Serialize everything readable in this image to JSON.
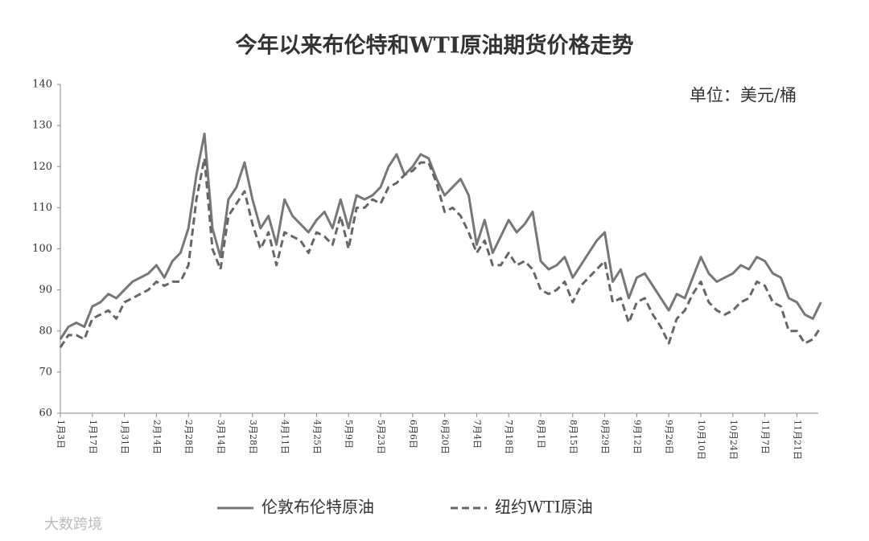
{
  "chart_data": {
    "type": "line",
    "title": "今年以来布伦特和WTI原油期货价格走势",
    "unit_label": "单位：美元/桶",
    "watermark": "大数跨境",
    "categories": [
      "1月3日",
      null,
      null,
      null,
      "1月17日",
      null,
      null,
      null,
      "1月31日",
      null,
      null,
      null,
      "2月14日",
      null,
      null,
      null,
      "2月28日",
      null,
      null,
      null,
      "3月14日",
      null,
      null,
      null,
      "3月28日",
      null,
      null,
      null,
      "4月11日",
      null,
      null,
      null,
      "4月25日",
      null,
      null,
      null,
      "5月9日",
      null,
      null,
      null,
      "5月23日",
      null,
      null,
      null,
      "6月6日",
      null,
      null,
      null,
      "6月20日",
      null,
      null,
      null,
      "7月4日",
      null,
      null,
      null,
      "7月18日",
      null,
      null,
      null,
      "8月1日",
      null,
      null,
      null,
      "8月15日",
      null,
      null,
      null,
      "8月29日",
      null,
      null,
      null,
      "9月12日",
      null,
      null,
      null,
      "9月26日",
      null,
      null,
      null,
      "10月10日",
      null,
      null,
      null,
      "10月24日",
      null,
      null,
      null,
      "11月7日",
      null,
      null,
      null,
      "11月21日",
      null,
      null,
      null
    ],
    "series": [
      {
        "name": "伦敦布伦特原油",
        "color": "#777777",
        "dash": false,
        "values": [
          78,
          81,
          82,
          81,
          86,
          87,
          89,
          88,
          90,
          92,
          93,
          94,
          96,
          93,
          97,
          99,
          105,
          118,
          128,
          105,
          98,
          112,
          115,
          121,
          112,
          105,
          108,
          101,
          112,
          108,
          106,
          104,
          107,
          109,
          105,
          112,
          105,
          113,
          112,
          113,
          115,
          120,
          123,
          118,
          120,
          123,
          122,
          117,
          113,
          115,
          117,
          113,
          101,
          107,
          99,
          103,
          107,
          104,
          106,
          109,
          97,
          95,
          96,
          98,
          93,
          96,
          99,
          102,
          104,
          92,
          95,
          88,
          93,
          94,
          91,
          88,
          85,
          89,
          88,
          93,
          98,
          94,
          92,
          93,
          94,
          96,
          95,
          98,
          97,
          94,
          93,
          88,
          87,
          84,
          83,
          87
        ]
      },
      {
        "name": "纽约WTI原油",
        "color": "#666666",
        "dash": true,
        "values": [
          76,
          79,
          79,
          78,
          83,
          84,
          85,
          83,
          87,
          88,
          89,
          90,
          92,
          91,
          92,
          92,
          96,
          112,
          122,
          100,
          95,
          108,
          111,
          114,
          106,
          100,
          104,
          96,
          104,
          103,
          102,
          99,
          104,
          103,
          101,
          108,
          100,
          110,
          110,
          112,
          111,
          115,
          116,
          118,
          119,
          121,
          121,
          116,
          109,
          110,
          108,
          104,
          99,
          102,
          96,
          96,
          99,
          96,
          97,
          95,
          90,
          89,
          90,
          92,
          87,
          91,
          93,
          95,
          97,
          87,
          88,
          82,
          87,
          88,
          84,
          81,
          77,
          83,
          85,
          89,
          92,
          87,
          85,
          84,
          85,
          87,
          88,
          92,
          91,
          87,
          86,
          80,
          80,
          77,
          78,
          81
        ]
      }
    ],
    "ylim": [
      60,
      140
    ],
    "yticks": [
      60,
      70,
      80,
      90,
      100,
      110,
      120,
      130,
      140
    ],
    "grid": false
  }
}
